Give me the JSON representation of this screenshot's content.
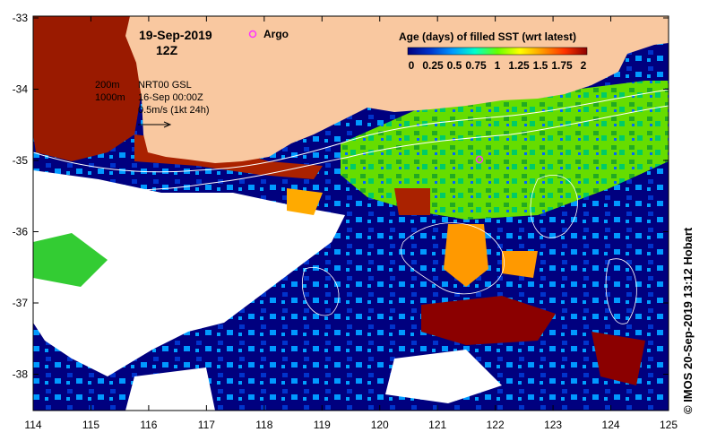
{
  "title": {
    "date": "19-Sep-2019",
    "time": "12Z",
    "argo_label": "Argo"
  },
  "legend": {
    "title": "Age (days) of filled SST (wrt latest)",
    "ticks": [
      "0",
      "0.25",
      "0.5",
      "0.75",
      "1",
      "1.25",
      "1.5",
      "1.75",
      "2"
    ],
    "colors": [
      "#00007f",
      "#0033cc",
      "#0099ff",
      "#00ffcc",
      "#66ff00",
      "#ffff00",
      "#ff9900",
      "#ff3300",
      "#8b0000"
    ]
  },
  "info": {
    "contour_1": "200m",
    "contour_2": "1000m",
    "product": "NRT00 GSL",
    "valid": "16-Sep 00:00Z",
    "scale": "0.5m/s (1kt 24h)"
  },
  "credit": "© IMOS 20-Sep-2019 13:12 Hobart",
  "axes": {
    "x_ticks": [
      "114",
      "115",
      "116",
      "117",
      "118",
      "119",
      "120",
      "121",
      "122",
      "123",
      "124",
      "125"
    ],
    "y_ticks": [
      "-33",
      "-34",
      "-35",
      "-36",
      "-37",
      "-38"
    ]
  },
  "colors": {
    "land": "#f9c8a0",
    "cloud": "#ffffff",
    "argo": "#ff33ff"
  }
}
